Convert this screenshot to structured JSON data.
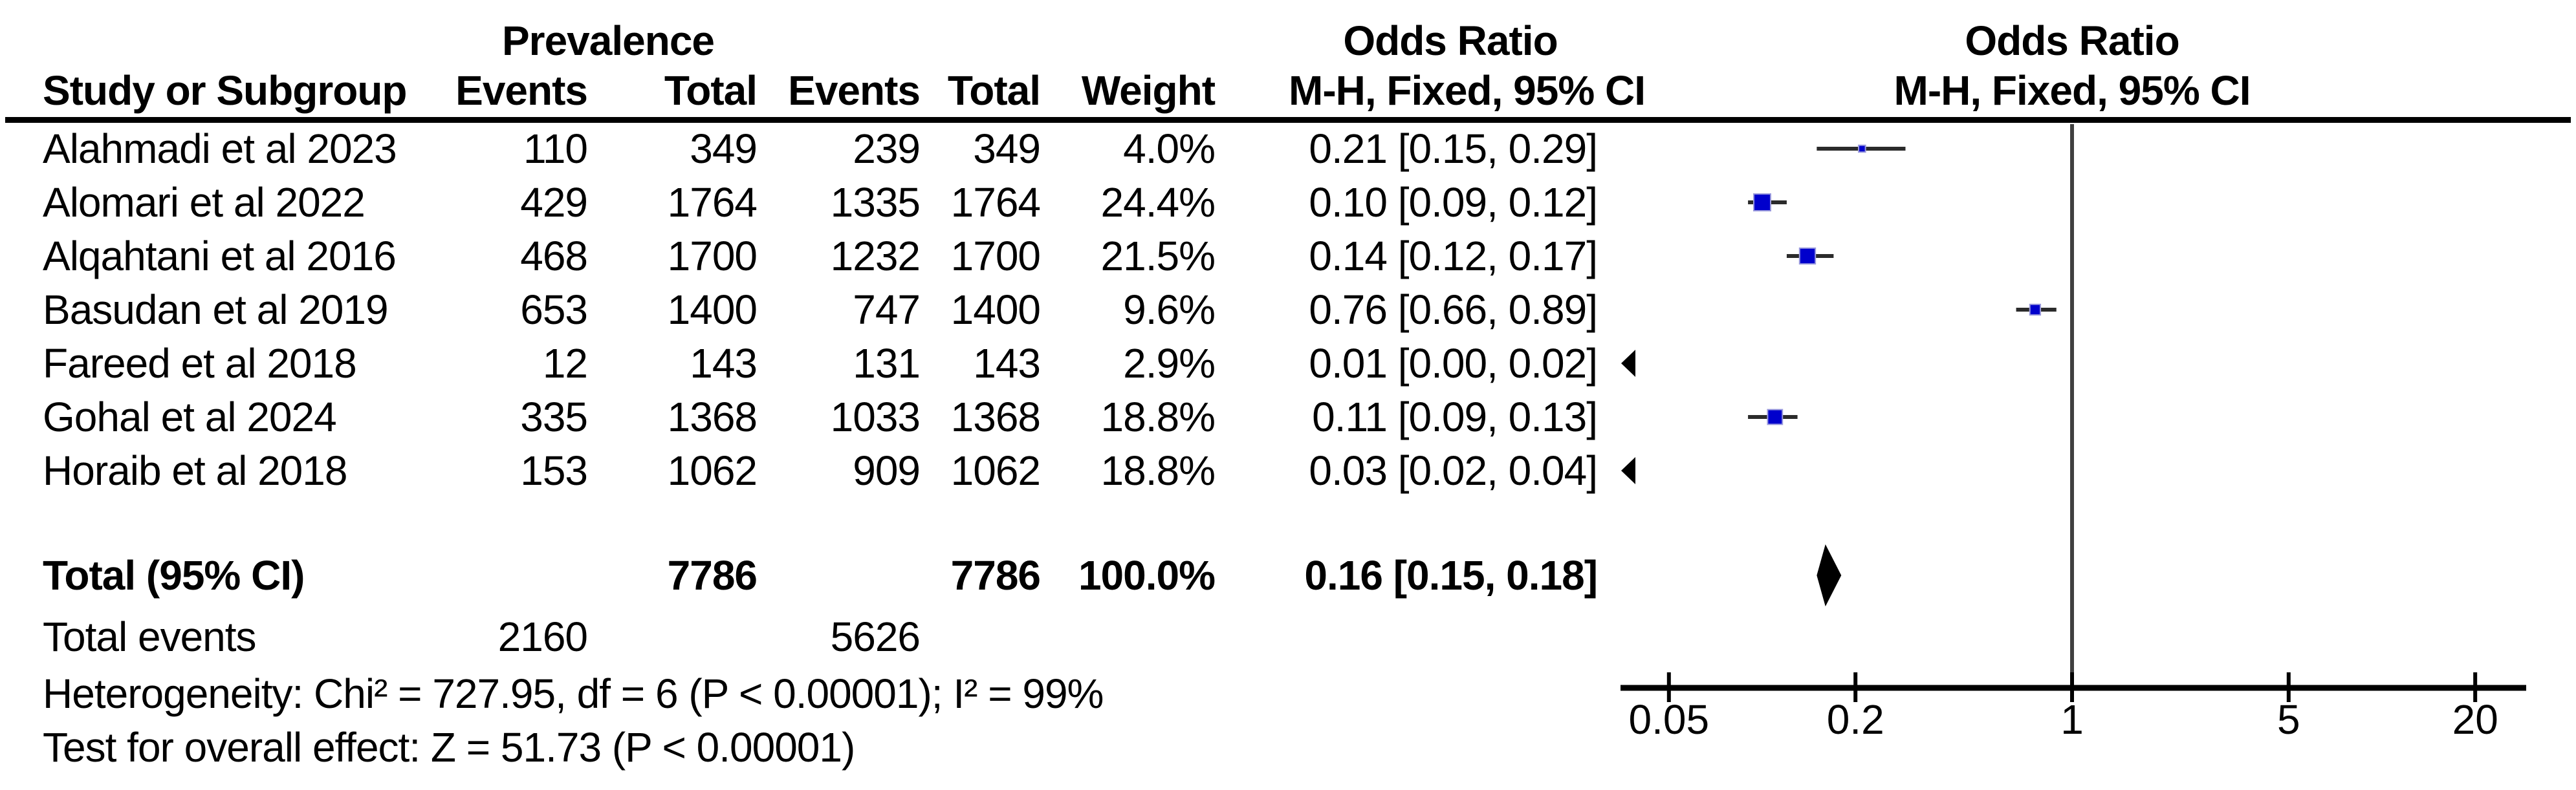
{
  "table": {
    "group_headers": {
      "prevalence": "Prevalence",
      "odds_ratio_text": "Odds Ratio",
      "odds_ratio_plot": "Odds Ratio"
    },
    "column_headers": {
      "study": "Study or Subgroup",
      "events1": "Events",
      "total1": "Total",
      "events2": "Events",
      "total2": "Total",
      "weight": "Weight",
      "mh_ci_text": "M-H, Fixed, 95% CI",
      "mh_ci_plot": "M-H, Fixed, 95% CI"
    },
    "rows": [
      {
        "study": "Alahmadi et al 2023",
        "events1": "110",
        "total1": "349",
        "events2": "239",
        "total2": "349",
        "weight": "4.0%",
        "or_ci": "0.21 [0.15, 0.29]"
      },
      {
        "study": "Alomari et al 2022",
        "events1": "429",
        "total1": "1764",
        "events2": "1335",
        "total2": "1764",
        "weight": "24.4%",
        "or_ci": "0.10 [0.09, 0.12]"
      },
      {
        "study": "Alqahtani et al 2016",
        "events1": "468",
        "total1": "1700",
        "events2": "1232",
        "total2": "1700",
        "weight": "21.5%",
        "or_ci": "0.14 [0.12, 0.17]"
      },
      {
        "study": "Basudan et al 2019",
        "events1": "653",
        "total1": "1400",
        "events2": "747",
        "total2": "1400",
        "weight": "9.6%",
        "or_ci": "0.76 [0.66, 0.89]"
      },
      {
        "study": "Fareed et al 2018",
        "events1": "12",
        "total1": "143",
        "events2": "131",
        "total2": "143",
        "weight": "2.9%",
        "or_ci": "0.01 [0.00, 0.02]"
      },
      {
        "study": "Gohal et al 2024",
        "events1": "335",
        "total1": "1368",
        "events2": "1033",
        "total2": "1368",
        "weight": "18.8%",
        "or_ci": "0.11 [0.09, 0.13]"
      },
      {
        "study": "Horaib et al 2018",
        "events1": "153",
        "total1": "1062",
        "events2": "909",
        "total2": "1062",
        "weight": "18.8%",
        "or_ci": "0.03 [0.02, 0.04]"
      }
    ],
    "total_row": {
      "label": "Total (95% CI)",
      "total1": "7786",
      "total2": "7786",
      "weight": "100.0%",
      "or_ci": "0.16 [0.15, 0.18]"
    },
    "total_events": {
      "label": "Total events",
      "events1": "2160",
      "events2": "5626"
    },
    "footnotes": {
      "heterogeneity": "Heterogeneity: Chi² = 727.95, df = 6 (P < 0.00001); I² = 99%",
      "overall_effect": "Test for overall effect: Z = 51.73 (P < 0.00001)"
    }
  },
  "chart_data": {
    "type": "forest",
    "x_scale": "log10",
    "x_ticks": [
      0.05,
      0.2,
      1,
      5,
      20
    ],
    "x_range": [
      0.05,
      20
    ],
    "null_line": 1,
    "marker_color": "#0000CC",
    "marker_edge_color": "#9999DD",
    "ci_color": "#2b2b2b",
    "axis_color": "#000000",
    "null_line_color": "#404040",
    "studies": [
      {
        "name": "Alahmadi et al 2023",
        "or": 0.21,
        "ci_low": 0.15,
        "ci_high": 0.29,
        "weight_pct": 4.0
      },
      {
        "name": "Alomari et al 2022",
        "or": 0.1,
        "ci_low": 0.09,
        "ci_high": 0.12,
        "weight_pct": 24.4
      },
      {
        "name": "Alqahtani et al 2016",
        "or": 0.14,
        "ci_low": 0.12,
        "ci_high": 0.17,
        "weight_pct": 21.5
      },
      {
        "name": "Basudan et al 2019",
        "or": 0.76,
        "ci_low": 0.66,
        "ci_high": 0.89,
        "weight_pct": 9.6
      },
      {
        "name": "Fareed et al 2018",
        "or": 0.01,
        "ci_low": 0.0,
        "ci_high": 0.02,
        "weight_pct": 2.9
      },
      {
        "name": "Gohal et al 2024",
        "or": 0.11,
        "ci_low": 0.09,
        "ci_high": 0.13,
        "weight_pct": 18.8
      },
      {
        "name": "Horaib et al 2018",
        "or": 0.03,
        "ci_low": 0.02,
        "ci_high": 0.04,
        "weight_pct": 18.8
      }
    ],
    "total": {
      "label": "Total (95% CI)",
      "or": 0.16,
      "ci_low": 0.15,
      "ci_high": 0.18
    }
  }
}
